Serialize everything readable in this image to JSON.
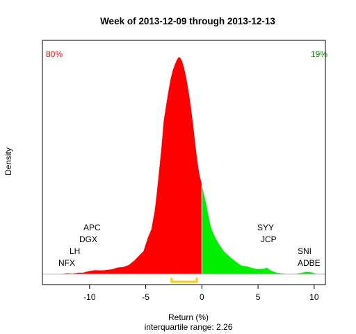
{
  "chart_data": {
    "type": "area",
    "title": "Week of 2013-12-09 through 2013-12-13",
    "xlabel": "Return (%)",
    "ylabel": "Density",
    "subtitle": "interquartile range: 2.26",
    "xlim": [
      -14.2,
      11
    ],
    "ylim": [
      0,
      0.39
    ],
    "x_ticks": [
      -10,
      -5,
      0,
      5,
      10
    ],
    "left_share": "80%",
    "right_share": "19%",
    "negative_color": "#ff0000",
    "positive_color": "#00ee00",
    "left_share_color": "#ff0000",
    "right_share_color": "#008800",
    "iqr_bar": {
      "from": -2.7,
      "to": -0.45,
      "color": "#ffcc00"
    },
    "density": {
      "x": [
        -12.6,
        -12.0,
        -11.5,
        -11.0,
        -10.6,
        -10.0,
        -9.5,
        -9.0,
        -8.6,
        -8.0,
        -7.5,
        -7.0,
        -6.5,
        -6.0,
        -5.5,
        -5.2,
        -4.8,
        -4.5,
        -4.2,
        -4.0,
        -3.8,
        -3.6,
        -3.4,
        -3.2,
        -3.0,
        -2.8,
        -2.6,
        -2.4,
        -2.2,
        -2.05,
        -1.9,
        -1.75,
        -1.6,
        -1.4,
        -1.2,
        -1.0,
        -0.8,
        -0.6,
        -0.4,
        -0.2,
        0.0,
        0.2,
        0.4,
        0.6,
        0.8,
        1.0,
        1.3,
        1.6,
        2.0,
        2.5,
        3.0,
        3.5,
        4.0,
        4.5,
        5.0,
        5.5,
        5.8,
        6.1,
        6.5,
        7.0,
        7.5,
        8.0,
        8.5,
        9.0,
        9.4,
        9.8,
        10.3
      ],
      "y": [
        0.0,
        0.0015,
        0.001,
        0.0025,
        0.0025,
        0.0055,
        0.007,
        0.0065,
        0.007,
        0.0085,
        0.0115,
        0.0125,
        0.016,
        0.024,
        0.034,
        0.04,
        0.064,
        0.078,
        0.11,
        0.143,
        0.182,
        0.22,
        0.266,
        0.292,
        0.316,
        0.338,
        0.354,
        0.365,
        0.374,
        0.378,
        0.376,
        0.37,
        0.36,
        0.343,
        0.32,
        0.294,
        0.264,
        0.228,
        0.196,
        0.172,
        0.156,
        0.138,
        0.121,
        0.1,
        0.082,
        0.072,
        0.06,
        0.05,
        0.039,
        0.03,
        0.022,
        0.015,
        0.0135,
        0.0105,
        0.0085,
        0.0095,
        0.011,
        0.0065,
        0.0035,
        0.0015,
        0.0005,
        0.0005,
        0.001,
        0.003,
        0.004,
        0.003,
        0.0
      ]
    },
    "left_labels": [
      "APC",
      "DGX",
      "LH",
      "NFX"
    ],
    "right_labels": [
      "SYY",
      "JCP",
      "SNI",
      "ADBE"
    ]
  }
}
